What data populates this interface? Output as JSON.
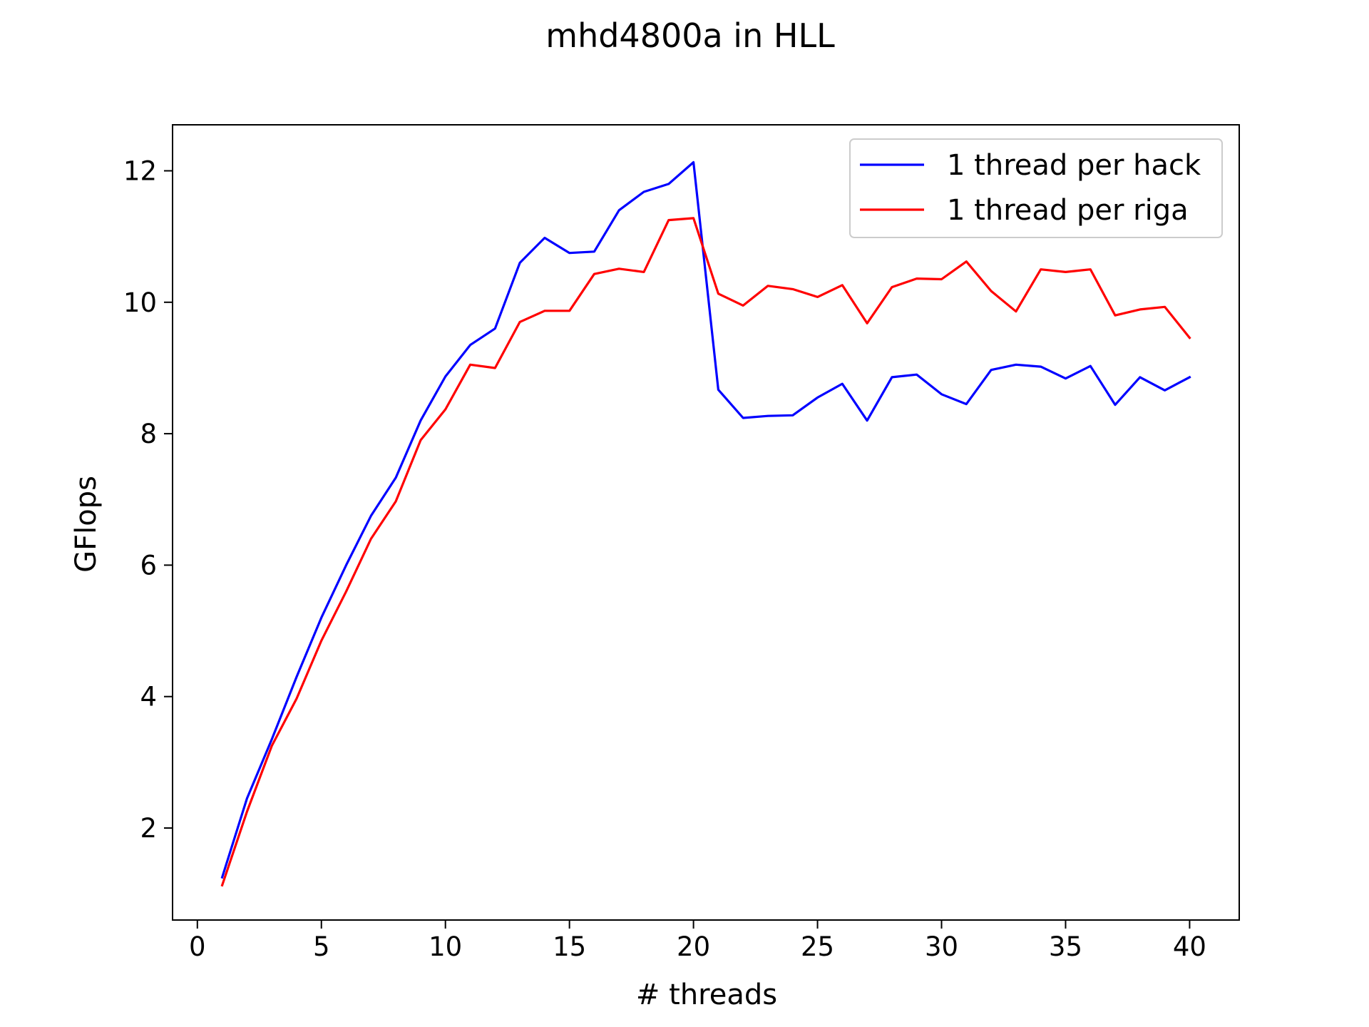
{
  "chart_data": {
    "type": "line",
    "title": "mhd4800a in HLL",
    "xlabel": "# threads",
    "ylabel": "GFlops",
    "xlim": [
      -1,
      42
    ],
    "ylim": [
      0.6,
      12.7
    ],
    "xticks": [
      0,
      5,
      10,
      15,
      20,
      25,
      30,
      35,
      40
    ],
    "yticks": [
      2,
      4,
      6,
      8,
      10,
      12
    ],
    "grid": false,
    "legend_position": "top-right",
    "x": [
      1,
      2,
      3,
      4,
      5,
      6,
      7,
      8,
      9,
      10,
      11,
      12,
      13,
      14,
      15,
      16,
      17,
      18,
      19,
      20,
      21,
      22,
      23,
      24,
      25,
      26,
      27,
      28,
      29,
      30,
      31,
      32,
      33,
      34,
      35,
      36,
      37,
      38,
      39,
      40
    ],
    "series": [
      {
        "name": "1 thread per hack",
        "color": "#0000ff",
        "values": [
          1.25,
          2.45,
          3.35,
          4.3,
          5.2,
          6.0,
          6.75,
          7.33,
          8.2,
          8.87,
          9.35,
          9.6,
          10.6,
          10.98,
          10.75,
          10.77,
          11.4,
          11.68,
          11.8,
          12.13,
          8.67,
          8.24,
          8.27,
          8.28,
          8.55,
          8.76,
          8.2,
          8.86,
          8.9,
          8.6,
          8.45,
          8.97,
          9.05,
          9.02,
          8.84,
          9.03,
          8.44,
          8.86,
          8.66,
          8.86
        ]
      },
      {
        "name": "1 thread per riga",
        "color": "#ff0000",
        "values": [
          1.13,
          2.25,
          3.25,
          3.97,
          4.85,
          5.6,
          6.4,
          6.97,
          7.9,
          8.37,
          9.05,
          9.0,
          9.7,
          9.87,
          9.87,
          10.43,
          10.51,
          10.46,
          11.25,
          11.28,
          10.13,
          9.95,
          10.25,
          10.2,
          10.08,
          10.26,
          9.68,
          10.23,
          10.36,
          10.35,
          10.62,
          10.17,
          9.86,
          10.5,
          10.46,
          10.5,
          9.8,
          9.89,
          9.93,
          9.46
        ]
      }
    ]
  }
}
